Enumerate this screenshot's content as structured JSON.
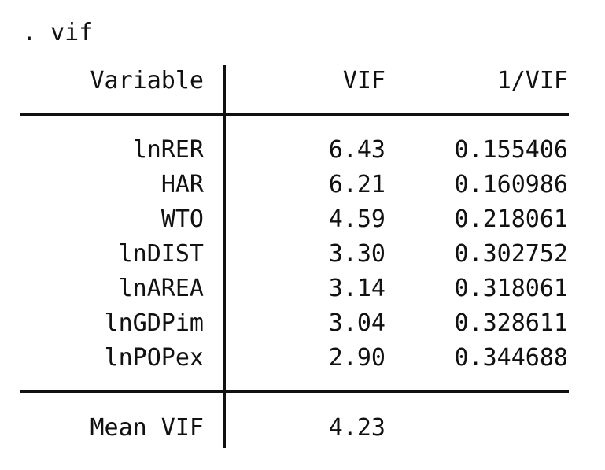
{
  "command": ". vif",
  "header": {
    "variable": "Variable",
    "vif": "VIF",
    "inv_vif": "1/VIF"
  },
  "rows": [
    {
      "variable": "lnRER",
      "vif": "6.43",
      "inv_vif": "0.155406"
    },
    {
      "variable": "HAR",
      "vif": "6.21",
      "inv_vif": "0.160986"
    },
    {
      "variable": "WTO",
      "vif": "4.59",
      "inv_vif": "0.218061"
    },
    {
      "variable": "lnDIST",
      "vif": "3.30",
      "inv_vif": "0.302752"
    },
    {
      "variable": "lnAREA",
      "vif": "3.14",
      "inv_vif": "0.318061"
    },
    {
      "variable": "lnGDPim",
      "vif": "3.04",
      "inv_vif": "0.328611"
    },
    {
      "variable": "lnPOPex",
      "vif": "2.90",
      "inv_vif": "0.344688"
    }
  ],
  "footer": {
    "label": "Mean VIF",
    "vif": "4.23"
  }
}
